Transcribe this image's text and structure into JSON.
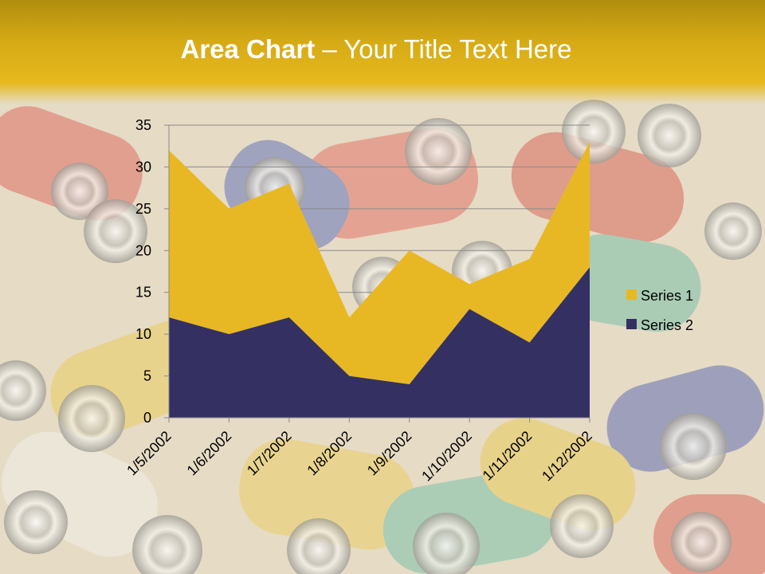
{
  "slide": {
    "title_bold": "Area Chart",
    "title_rest": " – Your Title Text Here"
  },
  "colors": {
    "title_band": "#d6aa15",
    "series1": "#e8b824",
    "series2": "#343062"
  },
  "chart_data": {
    "type": "area",
    "stacked": true,
    "categories": [
      "1/5/2002",
      "1/6/2002",
      "1/7/2002",
      "1/8/2002",
      "1/9/2002",
      "1/10/2002",
      "1/11/2002",
      "1/12/2002"
    ],
    "series": [
      {
        "name": "Series 1",
        "values": [
          20,
          15,
          16,
          7,
          16,
          3,
          10,
          15
        ],
        "color": "#e8b824"
      },
      {
        "name": "Series 2",
        "values": [
          12,
          10,
          12,
          5,
          4,
          13,
          9,
          18
        ],
        "color": "#343062"
      }
    ],
    "ylim": [
      0,
      35
    ],
    "yticks": [
      0,
      5,
      10,
      15,
      20,
      25,
      30,
      35
    ],
    "grid": true,
    "legend_position": "right"
  }
}
